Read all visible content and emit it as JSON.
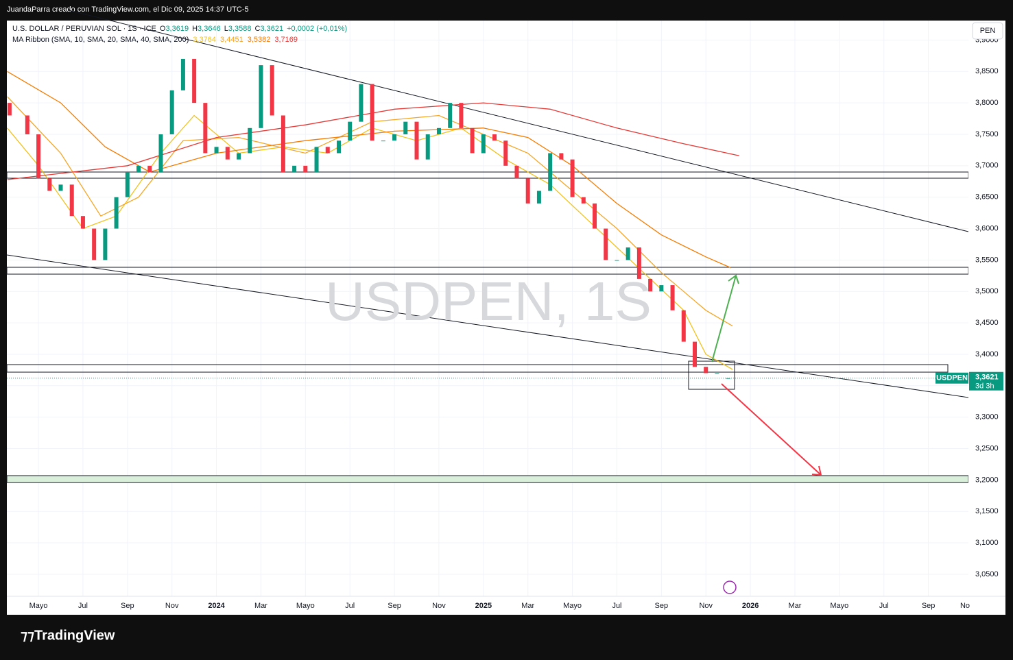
{
  "header": {
    "credit": "JuandaParra creado con TradingView.com, el Dic 09, 2025 14:37 UTC-5"
  },
  "legend": {
    "symbol": "U.S. DOLLAR / PERUVIAN SOL · 1S · ICE",
    "ohlc": [
      {
        "key": "O",
        "value": "3,3619"
      },
      {
        "key": "H",
        "value": "3,3646"
      },
      {
        "key": "L",
        "value": "3,3588"
      },
      {
        "key": "C",
        "value": "3,3621"
      }
    ],
    "change": "+0,0002 (+0,01%)",
    "ma_title": "MA Ribbon (SMA, 10, SMA, 20, SMA, 40, SMA, 200)"
  },
  "watermark": "USDPEN, 1S",
  "currency_button": "PEN",
  "symbol_tag": "USDPEN",
  "countdown": "3d 3h",
  "footer": {
    "brand": "TradingView"
  },
  "chart_data": {
    "type": "candlestick",
    "xlim": [
      2.58,
      45.8
    ],
    "ylim": [
      3.015,
      3.931
    ],
    "xticks": [
      {
        "value": 4,
        "label": "Mayo"
      },
      {
        "value": 6,
        "label": "Jul"
      },
      {
        "value": 8,
        "label": "Sep"
      },
      {
        "value": 10,
        "label": "Nov"
      },
      {
        "value": 12,
        "label": "2024"
      },
      {
        "value": 14,
        "label": "Mar"
      },
      {
        "value": 16,
        "label": "Mayo"
      },
      {
        "value": 18,
        "label": "Jul"
      },
      {
        "value": 20,
        "label": "Sep"
      },
      {
        "value": 22,
        "label": "Nov"
      },
      {
        "value": 24,
        "label": "2025"
      },
      {
        "value": 26,
        "label": "Mar"
      },
      {
        "value": 28,
        "label": "Mayo"
      },
      {
        "value": 30,
        "label": "Jul"
      },
      {
        "value": 32,
        "label": "Sep"
      },
      {
        "value": 34,
        "label": "Nov"
      },
      {
        "value": 36,
        "label": "2026"
      },
      {
        "value": 38,
        "label": "Mar"
      },
      {
        "value": 40,
        "label": "Mayo"
      },
      {
        "value": 42,
        "label": "Jul"
      },
      {
        "value": 44,
        "label": "Sep"
      },
      {
        "value": 46,
        "label": "No"
      }
    ],
    "yticks": [
      {
        "value": 3.05,
        "label": "3,0500"
      },
      {
        "value": 3.1,
        "label": "3,1000"
      },
      {
        "value": 3.15,
        "label": "3,1500"
      },
      {
        "value": 3.2,
        "label": "3,2000"
      },
      {
        "value": 3.25,
        "label": "3,2500"
      },
      {
        "value": 3.3,
        "label": "3,3000"
      },
      {
        "value": 3.35,
        "label": "3,3500"
      },
      {
        "value": 3.4,
        "label": "3,4000"
      },
      {
        "value": 3.45,
        "label": "3,4500"
      },
      {
        "value": 3.5,
        "label": "3,5000"
      },
      {
        "value": 3.55,
        "label": "3,5500"
      },
      {
        "value": 3.6,
        "label": "3,6000"
      },
      {
        "value": 3.65,
        "label": "3,6500"
      },
      {
        "value": 3.7,
        "label": "3,7000"
      },
      {
        "value": 3.75,
        "label": "3,7500"
      },
      {
        "value": 3.8,
        "label": "3,8000"
      },
      {
        "value": 3.85,
        "label": "3,8500"
      },
      {
        "value": 3.9,
        "label": "3,9000"
      }
    ],
    "grid": true,
    "up_color": "#089981",
    "down_color": "#f23645",
    "x": [
      2.7,
      3.5,
      4,
      4.5,
      5,
      5.5,
      6,
      6.5,
      7,
      7.5,
      8,
      8.5,
      9,
      9.5,
      10,
      10.5,
      11,
      11.5,
      12,
      12.5,
      13,
      13.5,
      14,
      14.5,
      15,
      15.5,
      16,
      16.5,
      17,
      17.5,
      18,
      18.5,
      19,
      19.5,
      20,
      20.5,
      21,
      21.5,
      22,
      22.5,
      23,
      23.5,
      24,
      24.5,
      25,
      25.5,
      26,
      26.5,
      27,
      27.5,
      28,
      28.5,
      29,
      29.5,
      30,
      30.5,
      31,
      31.5,
      32,
      32.5,
      33,
      33.5,
      34,
      34.5,
      35
    ],
    "open": [
      3.8,
      3.78,
      3.75,
      3.68,
      3.66,
      3.67,
      3.62,
      3.6,
      3.55,
      3.6,
      3.65,
      3.69,
      3.7,
      3.69,
      3.75,
      3.82,
      3.87,
      3.8,
      3.72,
      3.73,
      3.71,
      3.72,
      3.76,
      3.86,
      3.78,
      3.69,
      3.7,
      3.69,
      3.73,
      3.72,
      3.74,
      3.77,
      3.83,
      3.74,
      3.74,
      3.75,
      3.77,
      3.71,
      3.75,
      3.76,
      3.8,
      3.76,
      3.72,
      3.75,
      3.74,
      3.7,
      3.68,
      3.64,
      3.66,
      3.72,
      3.71,
      3.65,
      3.64,
      3.6,
      3.55,
      3.55,
      3.57,
      3.52,
      3.5,
      3.51,
      3.47,
      3.42,
      3.38,
      3.37,
      3.3619
    ],
    "close": [
      3.78,
      3.75,
      3.68,
      3.66,
      3.67,
      3.62,
      3.6,
      3.55,
      3.6,
      3.65,
      3.69,
      3.7,
      3.69,
      3.75,
      3.82,
      3.87,
      3.8,
      3.72,
      3.73,
      3.71,
      3.72,
      3.76,
      3.86,
      3.78,
      3.69,
      3.7,
      3.69,
      3.73,
      3.72,
      3.74,
      3.77,
      3.83,
      3.74,
      3.74,
      3.75,
      3.77,
      3.71,
      3.75,
      3.76,
      3.8,
      3.76,
      3.72,
      3.75,
      3.74,
      3.7,
      3.68,
      3.64,
      3.66,
      3.72,
      3.71,
      3.65,
      3.64,
      3.6,
      3.55,
      3.55,
      3.57,
      3.52,
      3.5,
      3.51,
      3.47,
      3.42,
      3.38,
      3.37,
      3.37,
      3.3621
    ],
    "last_price": {
      "value": 3.3621,
      "label": "3,3621"
    },
    "ma_lines": [
      {
        "color": "#f2c21b",
        "label": "3,3764",
        "x": [
          2.6,
          4,
          6,
          7.5,
          9.5,
          11,
          13,
          15,
          17,
          19,
          21,
          23,
          25,
          27,
          28.5,
          30,
          31.5,
          33,
          34,
          35.2
        ],
        "values": [
          3.76,
          3.7,
          3.6,
          3.62,
          3.72,
          3.78,
          3.72,
          3.73,
          3.72,
          3.76,
          3.74,
          3.76,
          3.71,
          3.67,
          3.62,
          3.57,
          3.52,
          3.47,
          3.4,
          3.376
        ]
      },
      {
        "color": "#f5a623",
        "label": "3,4451",
        "x": [
          2.6,
          5,
          6.8,
          8.5,
          10.5,
          13,
          16,
          19,
          22,
          24,
          26,
          28,
          30,
          32,
          34,
          35.2
        ],
        "values": [
          3.81,
          3.72,
          3.62,
          3.65,
          3.74,
          3.745,
          3.72,
          3.77,
          3.78,
          3.75,
          3.72,
          3.66,
          3.6,
          3.53,
          3.47,
          3.445
        ]
      },
      {
        "color": "#f57c00",
        "label": "3,5382",
        "x": [
          2.6,
          5,
          7,
          9,
          12,
          16,
          20,
          24,
          26,
          28,
          30,
          32,
          34,
          35.1
        ],
        "values": [
          3.85,
          3.8,
          3.73,
          3.69,
          3.72,
          3.74,
          3.755,
          3.76,
          3.745,
          3.7,
          3.64,
          3.59,
          3.555,
          3.538
        ]
      },
      {
        "color": "#e53935",
        "label": "3,7169",
        "x": [
          2.6,
          8,
          12,
          16,
          20,
          24,
          27,
          30,
          33,
          35.5
        ],
        "values": [
          3.678,
          3.7,
          3.745,
          3.765,
          3.79,
          3.8,
          3.79,
          3.76,
          3.735,
          3.716
        ]
      }
    ]
  }
}
